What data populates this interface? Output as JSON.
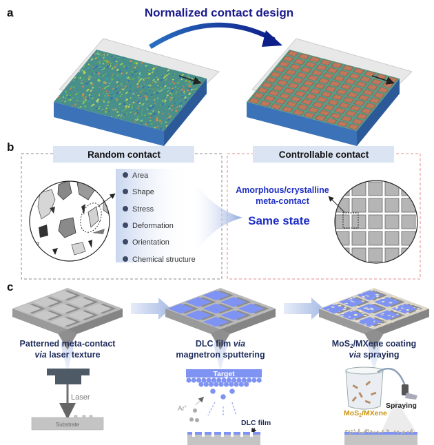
{
  "panels": {
    "a": "a",
    "b": "b",
    "c": "c"
  },
  "a": {
    "title": "Normalized contact design"
  },
  "b": {
    "random_title": "Random contact",
    "controllable_title": "Controllable contact",
    "factors": [
      "Area",
      "Shape",
      "Stress",
      "Deformation",
      "Orientation",
      "Chemical structure"
    ],
    "meta_line1": "Amorphous/crystalline",
    "meta_line2": "meta-contact",
    "same_state": "Same state"
  },
  "c": {
    "steps": [
      {
        "line1": "Patterned meta-contact",
        "line2_italic": "via",
        "line2": " laser texture"
      },
      {
        "line1": "DLC film ",
        "line1_italic": "via",
        "line2": "magnetron sputtering"
      },
      {
        "line1": "MoS",
        "line1_sub": "2",
        "line1_rest": "/MXene coating",
        "line2_italic": "via",
        "line2": " spraying"
      }
    ],
    "laser_label": "Laser",
    "substrate_label": "Substrate",
    "target_label": "Target",
    "ar_label": "Ar",
    "ar_sup": "+",
    "dlc_label": "DLC film",
    "mos2_label": "MoS",
    "mos2_sub": "2",
    "mos2_rest": "/MXene",
    "spraying_label": "Spraying"
  },
  "colors": {
    "title_navy": "#1a1a8c",
    "accent_blue": "#1f2fc4",
    "tab_fill": "#dbe4f3",
    "slab_blue": "#3c72b8",
    "dlc_blue": "#7f93f2",
    "mos2_gold": "#c9930c"
  }
}
